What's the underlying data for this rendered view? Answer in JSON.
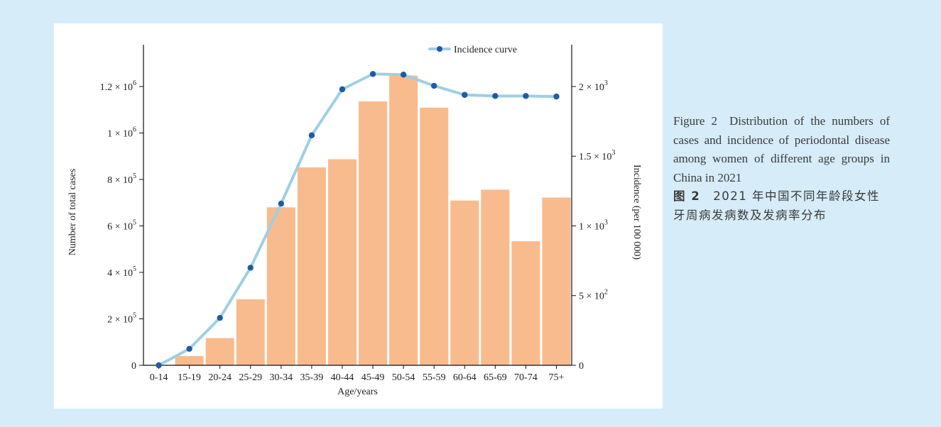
{
  "chart_data": {
    "type": "bar+line",
    "categories": [
      "0-14",
      "15-19",
      "20-24",
      "25-29",
      "30-34",
      "35-39",
      "40-44",
      "45-49",
      "50-54",
      "55-59",
      "60-64",
      "65-69",
      "70-74",
      "75+"
    ],
    "series": [
      {
        "type": "bar",
        "axis": "left",
        "color": "#f8bb8e",
        "values": [
          0,
          40000,
          117000,
          284000,
          680000,
          852000,
          887000,
          1136000,
          1247000,
          1109000,
          709000,
          756000,
          534000,
          722000
        ]
      },
      {
        "type": "line",
        "axis": "right",
        "name": "Incidence curve",
        "color": "#9fcfe2",
        "marker_color": "#1f5aa5",
        "values": [
          0,
          118,
          340,
          700,
          1160,
          1650,
          1980,
          2090,
          2085,
          2005,
          1940,
          1932,
          1932,
          1928
        ]
      }
    ],
    "xlabel": "Age/years",
    "ylabel_left": "Number of total cases",
    "ylabel_right": "Incidence (per 100 000)",
    "y_left_range": [
      0,
      1380000
    ],
    "y_right_range": [
      0,
      2300
    ],
    "y_left_ticks": [
      {
        "value": 0,
        "mant": "0",
        "exp": ""
      },
      {
        "value": 200000,
        "mant": "2 × 10",
        "exp": "5"
      },
      {
        "value": 400000,
        "mant": "4 × 10",
        "exp": "5"
      },
      {
        "value": 600000,
        "mant": "6 × 10",
        "exp": "5"
      },
      {
        "value": 800000,
        "mant": "8 × 10",
        "exp": "5"
      },
      {
        "value": 1000000,
        "mant": "1 × 10",
        "exp": "6"
      },
      {
        "value": 1200000,
        "mant": "1.2 × 10",
        "exp": "6"
      }
    ],
    "y_right_ticks": [
      {
        "value": 0,
        "mant": "0",
        "exp": ""
      },
      {
        "value": 500,
        "mant": "5 × 10",
        "exp": "2"
      },
      {
        "value": 1000,
        "mant": "1 × 10",
        "exp": "3"
      },
      {
        "value": 1500,
        "mant": "1.5 × 10",
        "exp": "3"
      },
      {
        "value": 2000,
        "mant": "2 × 10",
        "exp": "3"
      }
    ],
    "legend_position": "top-right",
    "grid": false
  },
  "caption": {
    "en": "Figure 2 Distribution of the numbers of cases and inci­dence of periodontal disease among women of different age groups in China in 2021",
    "cn_label": "图 2",
    "cn_text": "2021 年中国不同年龄段女性牙周病发病数及发病率分布"
  }
}
